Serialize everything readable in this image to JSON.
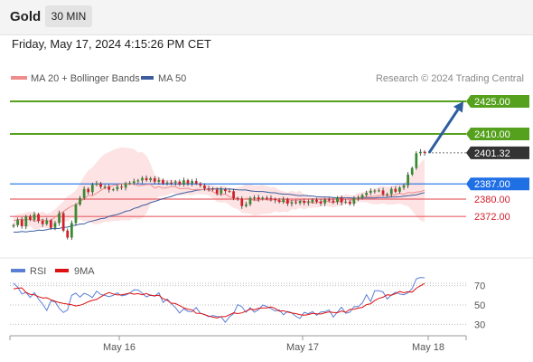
{
  "header": {
    "symbol": "Gold",
    "interval": "30 MIN",
    "datetime": "Friday, May 17, 2024 4:15:26 PM CET"
  },
  "credit": "Research © 2024 Trading Central",
  "colors": {
    "up": "#3a8a34",
    "down": "#d0202a",
    "resistance": "#55a11d",
    "pivot": "#1f6fe5",
    "support": "#e8636a",
    "current": "#333333",
    "ma20": "#f08c8c",
    "bollinger_fill": "#fde3e3",
    "ma50": "#3d5d9e",
    "rsi": "#5b7fd6",
    "rsi_ma": "#dd1111",
    "arrow": "#2c5d9f"
  },
  "chart_data": [
    {
      "type": "candlestick",
      "title": "Gold",
      "interval": "30 MIN",
      "legend": [
        {
          "name": "MA 20 + Bollinger Bands",
          "color": "#f08c8c"
        },
        {
          "name": "MA 50",
          "color": "#3d5d9e"
        }
      ],
      "x_ticks": [
        "May 16",
        "May 17",
        "May 18"
      ],
      "price_range": [
        2360,
        2430
      ],
      "levels": [
        {
          "label": "2425.00",
          "value": 2425.0,
          "kind": "resistance"
        },
        {
          "label": "2410.00",
          "value": 2410.0,
          "kind": "resistance"
        },
        {
          "label": "2401.32",
          "value": 2401.32,
          "kind": "current"
        },
        {
          "label": "2387.00",
          "value": 2387.0,
          "kind": "pivot"
        },
        {
          "label": "2380.00",
          "value": 2380.0,
          "kind": "support"
        },
        {
          "label": "2372.00",
          "value": 2372.0,
          "kind": "support"
        }
      ],
      "scenario_arrow": {
        "from": 2401.32,
        "to": 2425.0
      },
      "series": [
        {
          "name": "Close",
          "values": [
            2368.0,
            2370.5,
            2367.5,
            2372.0,
            2370.5,
            2373.0,
            2370.0,
            2368.5,
            2370.2,
            2366.8,
            2369.0,
            2373.5,
            2365.5,
            2362.3,
            2369.0,
            2377.5,
            2380.5,
            2384.7,
            2383.2,
            2386.6,
            2387.2,
            2385.6,
            2385.7,
            2384.3,
            2384.5,
            2385.7,
            2385.3,
            2387.3,
            2387.4,
            2388.2,
            2388.6,
            2389.7,
            2388.7,
            2389.6,
            2388.0,
            2388.8,
            2387.2,
            2387.6,
            2387.5,
            2388.1,
            2386.7,
            2388.7,
            2387.2,
            2388.3,
            2387.2,
            2386.3,
            2384.9,
            2384.8,
            2384.4,
            2382.6,
            2384.5,
            2383.7,
            2383.6,
            2380.4,
            2380.3,
            2376.8,
            2377.6,
            2380.5,
            2380.8,
            2380.0,
            2380.6,
            2380.5,
            2380.0,
            2379.5,
            2378.7,
            2379.9,
            2377.9,
            2378.6,
            2378.2,
            2379.2,
            2378.3,
            2378.6,
            2379.7,
            2378.8,
            2378.0,
            2379.8,
            2379.3,
            2378.6,
            2380.7,
            2378.4,
            2378.8,
            2377.9,
            2380.4,
            2380.5,
            2381.9,
            2382.9,
            2383.8,
            2383.9,
            2384.0,
            2382.2,
            2382.3,
            2384.7,
            2383.4,
            2385.3,
            2386.3,
            2391.3,
            2394.3,
            2401.1,
            2401.8,
            2401.3
          ]
        },
        {
          "name": "MA 20",
          "values": [
            2370.1,
            2370.5,
            2370.7,
            2370.3,
            2370.9,
            2369.9,
            2370.0,
            2370.6,
            2369.9,
            2370.1,
            2371.7,
            2373.2,
            2374.3,
            2375.6,
            2376.8,
            2377.3,
            2378.9,
            2380.1,
            2381.7,
            2381.6,
            2382.7,
            2384.0,
            2385.2,
            2385.6,
            2386.3,
            2386.6,
            2387.0,
            2386.9,
            2386.8,
            2387.1,
            2386.1,
            2386.4,
            2386.7,
            2386.8,
            2385.1,
            2385.8,
            2385.0,
            2385.3,
            2385.8,
            2385.7,
            2384.8,
            2384.9,
            2385.0,
            2384.3,
            2384.5,
            2384.4,
            2384.4,
            2384.3,
            2383.4,
            2382.3,
            2382.2,
            2382.3,
            2381.1,
            2380.4,
            2380.4,
            2379.8,
            2380.3,
            2380.2,
            2379.2,
            2379.5,
            2379.9,
            2379.6,
            2379.5,
            2379.9,
            2379.0,
            2378.9,
            2378.5,
            2379.6,
            2379.1,
            2380.0,
            2378.5,
            2379.0,
            2378.3,
            2378.3,
            2378.8,
            2379.3,
            2378.7,
            2378.4,
            2379.0,
            2379.2,
            2380.1,
            2379.6,
            2379.5,
            2380.8,
            2380.8,
            2381.2,
            2381.1,
            2381.3,
            2381.6,
            2382.1,
            2381.5,
            2381.8,
            2382.0,
            2382.7,
            2382.1,
            2383.1,
            2382.8,
            2383.2,
            2383.4,
            2384.1
          ]
        },
        {
          "name": "MA 50",
          "values": [
            2364.8,
            2364.8,
            2365.1,
            2364.9,
            2365.2,
            2365.3,
            2365.7,
            2365.6,
            2365.9,
            2366.4,
            2366.4,
            2366.5,
            2367.0,
            2367.1,
            2367.7,
            2368.0,
            2368.5,
            2368.6,
            2369.5,
            2369.9,
            2370.4,
            2371.0,
            2371.2,
            2372.1,
            2372.5,
            2372.9,
            2373.6,
            2374.4,
            2374.7,
            2375.7,
            2376.2,
            2377.1,
            2377.5,
            2378.4,
            2378.9,
            2379.6,
            2380.2,
            2380.7,
            2381.2,
            2381.9,
            2382.4,
            2382.8,
            2383.3,
            2383.5,
            2384.1,
            2384.3,
            2384.5,
            2384.6,
            2384.7,
            2384.7,
            2384.7,
            2384.6,
            2384.7,
            2384.5,
            2384.3,
            2384.2,
            2384.2,
            2383.8,
            2383.6,
            2383.5,
            2383.5,
            2383.2,
            2382.9,
            2382.9,
            2382.5,
            2382.3,
            2382.3,
            2382.1,
            2381.8,
            2381.6,
            2381.7,
            2381.5,
            2381.4,
            2381.1,
            2381.0,
            2380.9,
            2380.9,
            2380.7,
            2380.6,
            2380.6,
            2380.6,
            2380.6,
            2380.4,
            2380.5,
            2380.5,
            2380.5,
            2380.5,
            2380.5,
            2380.7,
            2380.7,
            2380.8,
            2380.9,
            2381.0,
            2381.1,
            2381.3,
            2381.6,
            2381.8,
            2382.0,
            2382.5,
            2383.0
          ]
        },
        {
          "name": "RSI",
          "values": [
            72.4,
            68.6,
            61.3,
            63.1,
            57.8,
            62.8,
            56.2,
            50.8,
            44.3,
            54.3,
            53.2,
            46.5,
            42.2,
            44.8,
            59.9,
            62.3,
            58.2,
            62.1,
            60.5,
            57.7,
            64.3,
            61.0,
            59.9,
            58.5,
            59.9,
            62.7,
            59.5,
            60.3,
            62.2,
            65.7,
            65.6,
            62.2,
            58.3,
            60.5,
            59.0,
            62.7,
            52.6,
            56.1,
            51.3,
            47.4,
            41.7,
            46.1,
            43.3,
            43.1,
            47.4,
            41.4,
            40.2,
            37.8,
            39.0,
            38.1,
            37.7,
            32.0,
            37.7,
            41.1,
            50.4,
            48.0,
            42.5,
            47.2,
            42.5,
            45.1,
            50.0,
            48.4,
            46.3,
            43.8,
            44.9,
            39.9,
            43.3,
            41.9,
            38.3,
            36.0,
            42.4,
            41.0,
            43.1,
            39.4,
            42.8,
            43.1,
            44.8,
            37.4,
            42.7,
            47.7,
            41.4,
            42.6,
            48.4,
            48.2,
            52.1,
            60.7,
            53.6,
            64.8,
            64.7,
            63.5,
            56.2,
            60.3,
            63.3,
            61.3,
            60.6,
            62.6,
            67.0,
            77.0,
            78.5,
            78.1
          ]
        },
        {
          "name": "9MA",
          "values": [
            66.7,
            67.4,
            67.7,
            63.0,
            61.1,
            60.6,
            58.6,
            57.3,
            57.5,
            55.4,
            53.8,
            52.4,
            51.6,
            50.9,
            50.2,
            49.0,
            49.7,
            51.2,
            53.4,
            54.8,
            55.7,
            58.3,
            61.1,
            62.8,
            61.4,
            60.4,
            60.6,
            61.3,
            62.4,
            61.2,
            61.8,
            60.6,
            61.9,
            59.8,
            59.6,
            60.0,
            56.5,
            54.9,
            51.9,
            51.5,
            49.3,
            47.1,
            45.6,
            45.0,
            41.5,
            41.4,
            40.1,
            38.6,
            37.4,
            36.5,
            37.9,
            37.9,
            39.9,
            41.8,
            41.1,
            41.8,
            43.6,
            45.8,
            45.0,
            46.6,
            46.9,
            47.0,
            47.9,
            46.5,
            43.5,
            44.0,
            42.7,
            41.7,
            41.1,
            40.0,
            39.5,
            40.1,
            41.3,
            40.9,
            40.6,
            41.9,
            42.9,
            42.2,
            42.0,
            43.7,
            42.4,
            45.4,
            45.6,
            46.7,
            47.6,
            50.4,
            51.3,
            54.6,
            56.8,
            58.1,
            60.6,
            60.1,
            61.7,
            64.0,
            62.7,
            63.7,
            63.3,
            67.3,
            69.9,
            72.3
          ]
        }
      ]
    },
    {
      "type": "line",
      "title": "RSI",
      "legend": [
        {
          "name": "RSI",
          "color": "#5b7fd6"
        },
        {
          "name": "9MA",
          "color": "#dd1111"
        }
      ],
      "y_ticks": [
        "70",
        "50",
        "30"
      ],
      "ylim": [
        20,
        80
      ]
    }
  ]
}
